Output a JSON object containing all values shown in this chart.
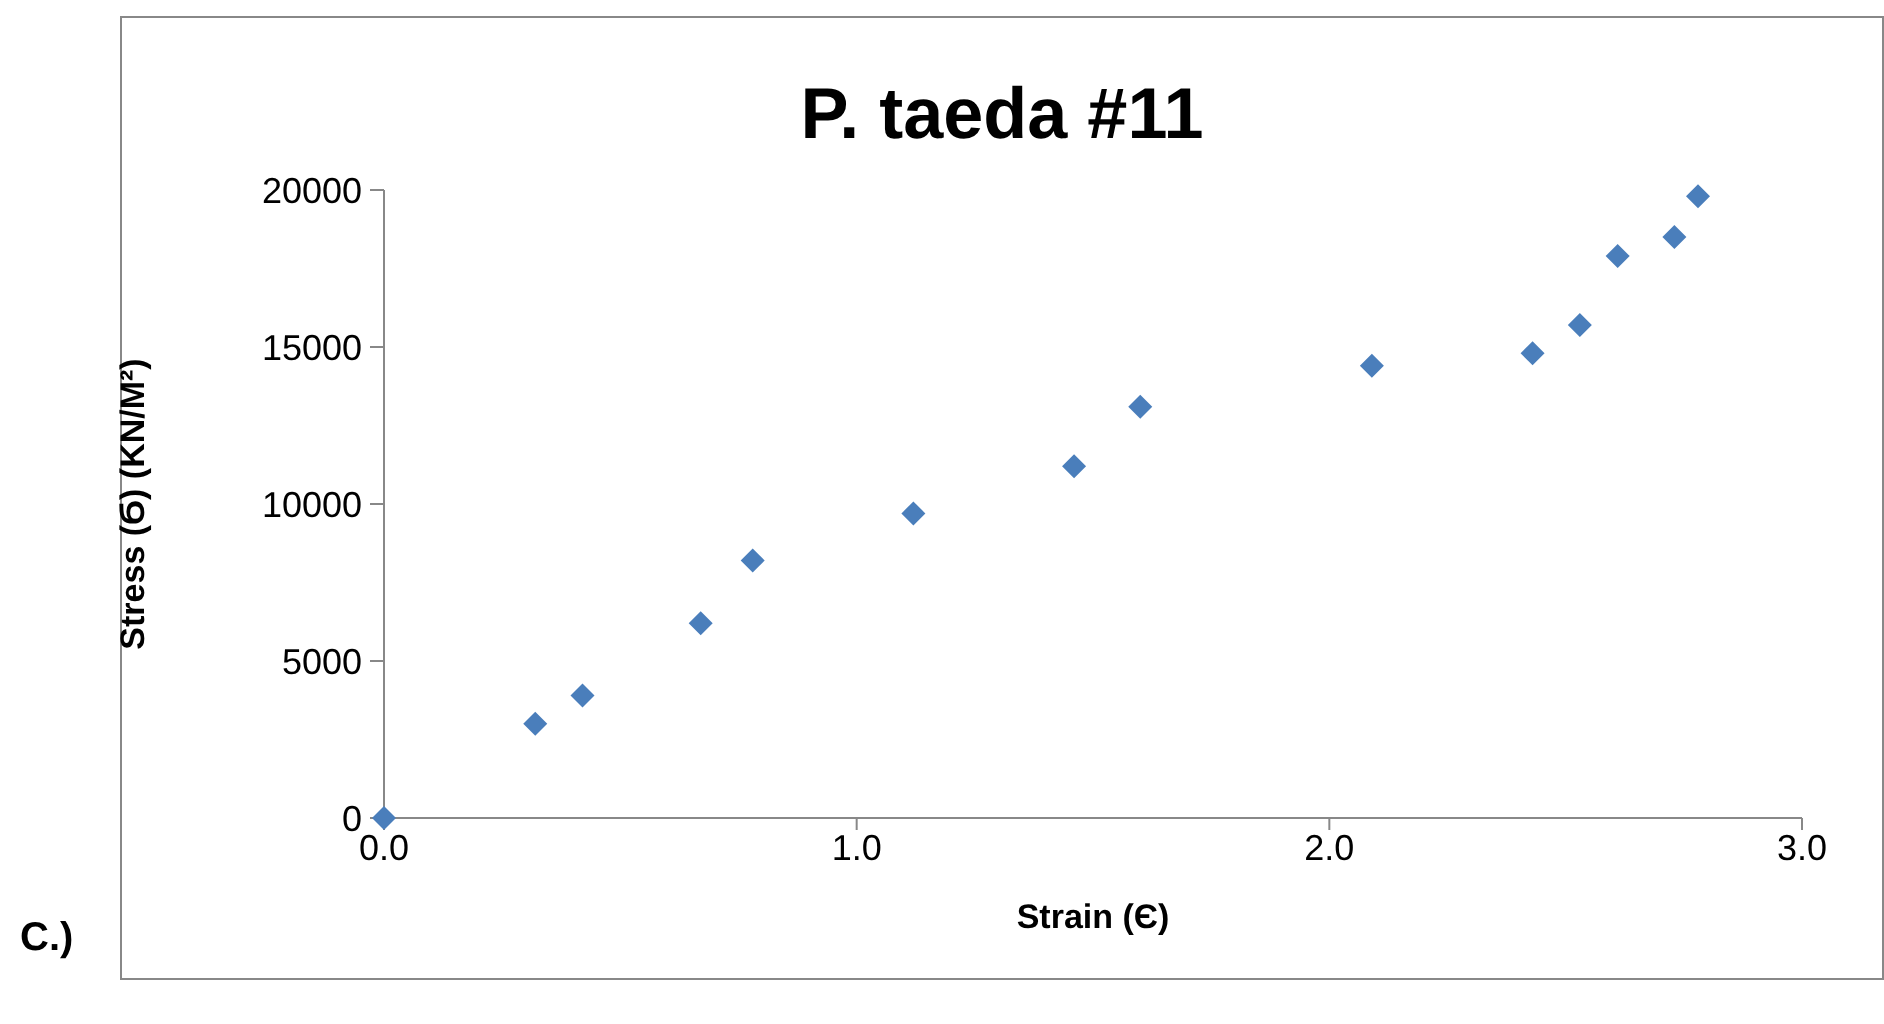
{
  "chart_data": {
    "type": "scatter",
    "title": "P. taeda #11",
    "xlabel": "Strain (Є)",
    "ylabel": "Stress (Ϭ) (KN/M²)",
    "annotations": [
      "C.)"
    ],
    "x": [
      0.0,
      0.32,
      0.42,
      0.67,
      0.78,
      1.12,
      1.46,
      1.6,
      2.09,
      2.43,
      2.53,
      2.61,
      2.73,
      2.78
    ],
    "series": [
      {
        "color": "#4a7ebb",
        "values": [
          0,
          3000,
          3900,
          6200,
          8200,
          9700,
          11200,
          13100,
          14400,
          14800,
          15700,
          17900,
          18500,
          19800
        ]
      }
    ],
    "xlim": [
      0,
      3
    ],
    "xticks": [
      {
        "value": 0,
        "label": "0.0"
      },
      {
        "value": 1,
        "label": "1.0"
      },
      {
        "value": 2,
        "label": "2.0"
      },
      {
        "value": 3,
        "label": "3.0"
      }
    ],
    "ylim": [
      0,
      20000
    ],
    "yticks": [
      0,
      5000,
      10000,
      15000,
      20000
    ],
    "grid": false,
    "legend": false,
    "marker": "diamond"
  }
}
